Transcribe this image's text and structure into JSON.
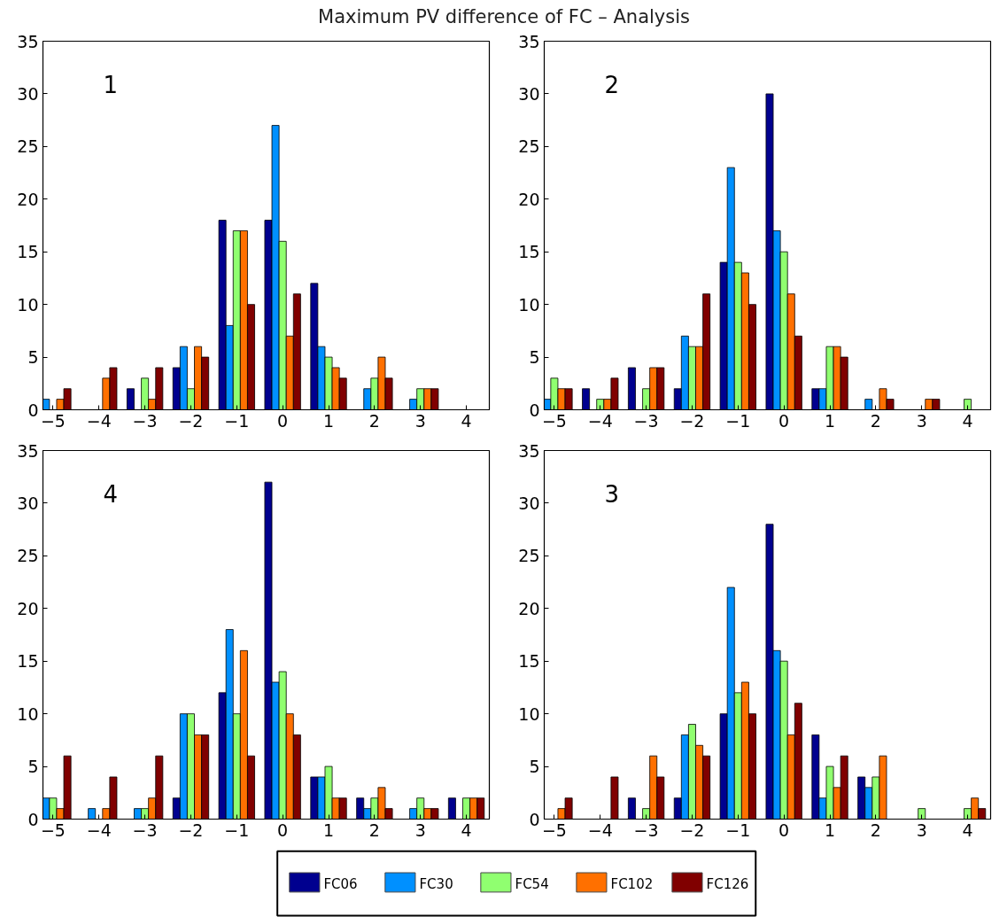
{
  "chart_data": [
    {
      "type": "bar",
      "title": "Maximum PV difference of FC – Analysis",
      "annotations": [
        "1"
      ],
      "x": [
        -5,
        -4,
        -3,
        -2,
        -1,
        0,
        1,
        2,
        3,
        4
      ],
      "xlim": [
        -5.22,
        4.5
      ],
      "xticks": [
        {
          "value": -5,
          "label": "−5"
        },
        {
          "value": -4,
          "label": "−4"
        },
        {
          "value": -3,
          "label": "−3"
        },
        {
          "value": -2,
          "label": "−2"
        },
        {
          "value": -1,
          "label": "−1"
        },
        0,
        1,
        2,
        3,
        4
      ],
      "ylim": [
        0,
        35
      ],
      "yticks": [
        0,
        5,
        10,
        15,
        20,
        25,
        30,
        35
      ],
      "grid": false,
      "series": [
        {
          "color": "#00008f",
          "values": [
            0,
            0,
            2,
            4,
            18,
            18,
            12,
            0,
            0,
            0
          ]
        },
        {
          "color": "#0090ff",
          "values": [
            1,
            0,
            0,
            6,
            8,
            27,
            6,
            2,
            1,
            0
          ]
        },
        {
          "color": "#90ff70",
          "values": [
            0,
            0,
            3,
            2,
            17,
            16,
            5,
            3,
            2,
            0
          ]
        },
        {
          "color": "#ff7000",
          "values": [
            1,
            3,
            1,
            6,
            17,
            7,
            4,
            5,
            2,
            0
          ]
        },
        {
          "color": "#800000",
          "values": [
            2,
            4,
            4,
            5,
            10,
            11,
            3,
            3,
            2,
            0
          ]
        }
      ]
    },
    {
      "type": "bar",
      "annotations": [
        "2"
      ],
      "x": [
        -5,
        -4,
        -3,
        -2,
        -1,
        0,
        1,
        2,
        3,
        4
      ],
      "xlim": [
        -5.22,
        4.5
      ],
      "xticks": [
        {
          "value": -5,
          "label": "−5"
        },
        {
          "value": -4,
          "label": "−4"
        },
        {
          "value": -3,
          "label": "−3"
        },
        {
          "value": -2,
          "label": "−2"
        },
        {
          "value": -1,
          "label": "−1"
        },
        0,
        1,
        2,
        3,
        4
      ],
      "ylim": [
        0,
        35
      ],
      "yticks": [
        0,
        5,
        10,
        15,
        20,
        25,
        30,
        35
      ],
      "grid": false,
      "series": [
        {
          "color": "#00008f",
          "values": [
            0,
            2,
            4,
            2,
            14,
            30,
            2,
            0,
            0,
            0
          ]
        },
        {
          "color": "#0090ff",
          "values": [
            1,
            0,
            0,
            7,
            23,
            17,
            2,
            1,
            0,
            0
          ]
        },
        {
          "color": "#90ff70",
          "values": [
            3,
            1,
            2,
            6,
            14,
            15,
            6,
            0,
            0,
            1
          ]
        },
        {
          "color": "#ff7000",
          "values": [
            2,
            1,
            4,
            6,
            13,
            11,
            6,
            2,
            1,
            0
          ]
        },
        {
          "color": "#800000",
          "values": [
            2,
            3,
            4,
            11,
            10,
            7,
            5,
            1,
            1,
            0
          ]
        }
      ]
    },
    {
      "type": "bar",
      "annotations": [
        "4"
      ],
      "x": [
        -5,
        -4,
        -3,
        -2,
        -1,
        0,
        1,
        2,
        3,
        4
      ],
      "xlim": [
        -5.22,
        4.5
      ],
      "xticks": [
        {
          "value": -5,
          "label": "−5"
        },
        {
          "value": -4,
          "label": "−4"
        },
        {
          "value": -3,
          "label": "−3"
        },
        {
          "value": -2,
          "label": "−2"
        },
        {
          "value": -1,
          "label": "−1"
        },
        0,
        1,
        2,
        3,
        4
      ],
      "ylim": [
        0,
        35
      ],
      "yticks": [
        0,
        5,
        10,
        15,
        20,
        25,
        30,
        35
      ],
      "grid": false,
      "series": [
        {
          "color": "#00008f",
          "values": [
            0,
            0,
            0,
            2,
            12,
            32,
            4,
            2,
            0,
            2
          ]
        },
        {
          "color": "#0090ff",
          "values": [
            2,
            1,
            1,
            10,
            18,
            13,
            4,
            1,
            1,
            0
          ]
        },
        {
          "color": "#90ff70",
          "values": [
            2,
            0,
            1,
            10,
            10,
            14,
            5,
            2,
            2,
            2
          ]
        },
        {
          "color": "#ff7000",
          "values": [
            1,
            1,
            2,
            8,
            16,
            10,
            2,
            3,
            1,
            2
          ]
        },
        {
          "color": "#800000",
          "values": [
            6,
            4,
            6,
            8,
            6,
            8,
            2,
            1,
            1,
            2
          ]
        }
      ]
    },
    {
      "type": "bar",
      "annotations": [
        "3"
      ],
      "legend": "bottom",
      "x": [
        -5,
        -4,
        -3,
        -2,
        -1,
        0,
        1,
        2,
        3,
        4
      ],
      "xlim": [
        -5.22,
        4.5
      ],
      "xticks": [
        {
          "value": -5,
          "label": "−5"
        },
        {
          "value": -4,
          "label": "−4"
        },
        {
          "value": -3,
          "label": "−3"
        },
        {
          "value": -2,
          "label": "−2"
        },
        {
          "value": -1,
          "label": "−1"
        },
        0,
        1,
        2,
        3,
        4
      ],
      "ylim": [
        0,
        35
      ],
      "yticks": [
        0,
        5,
        10,
        15,
        20,
        25,
        30,
        35
      ],
      "grid": false,
      "series": [
        {
          "name": "FC06",
          "color": "#00008f",
          "values": [
            0,
            0,
            2,
            2,
            10,
            28,
            8,
            4,
            0,
            0
          ]
        },
        {
          "name": "FC30",
          "color": "#0090ff",
          "values": [
            0,
            0,
            0,
            8,
            22,
            16,
            2,
            3,
            0,
            0
          ]
        },
        {
          "name": "FC54",
          "color": "#90ff70",
          "values": [
            0,
            0,
            1,
            9,
            12,
            15,
            5,
            4,
            1,
            1
          ]
        },
        {
          "name": "FC102",
          "color": "#ff7000",
          "values": [
            1,
            0,
            6,
            7,
            13,
            8,
            3,
            6,
            0,
            2
          ]
        },
        {
          "name": "FC126",
          "color": "#800000",
          "values": [
            2,
            4,
            4,
            6,
            10,
            11,
            6,
            0,
            0,
            1
          ]
        }
      ]
    }
  ]
}
